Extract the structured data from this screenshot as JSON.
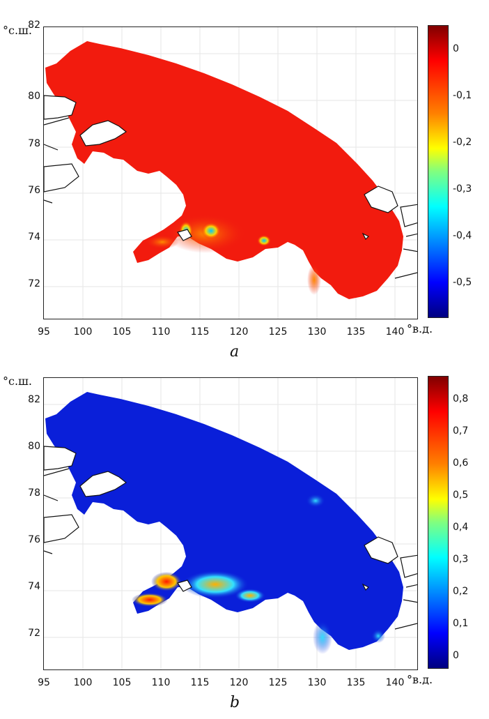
{
  "panels": [
    {
      "id": "a",
      "caption": "a",
      "lat_unit": "°с.ш.",
      "lon_unit": "°в.д.",
      "lat_ticks": [
        "82",
        "80",
        "78",
        "76",
        "74",
        "72"
      ],
      "lon_ticks": [
        "95",
        "100",
        "105",
        "110",
        "115",
        "120",
        "125",
        "130",
        "135",
        "140"
      ],
      "colorbar_ticks": [
        "0",
        "-0,1",
        "-0,2",
        "-0,3",
        "-0,4",
        "-0,5"
      ],
      "colorbar_range": [
        -0.58,
        0.04
      ],
      "base_color": "#f21b0e",
      "coastal_colors": [
        "#ffd400",
        "#ff8c00",
        "#00c8ff",
        "#1e6bff"
      ]
    },
    {
      "id": "b",
      "caption": "b",
      "lat_unit": "°с.ш.",
      "lon_unit": "°в.д.",
      "lat_ticks": [
        "82",
        "80",
        "78",
        "76",
        "74",
        "72"
      ],
      "lon_ticks": [
        "95",
        "100",
        "105",
        "110",
        "115",
        "120",
        "125",
        "130",
        "135",
        "140"
      ],
      "colorbar_ticks": [
        "0,8",
        "0,7",
        "0,6",
        "0,5",
        "0,4",
        "0,3",
        "0,2",
        "0,1",
        "0"
      ],
      "colorbar_range": [
        -0.03,
        0.88
      ],
      "base_color": "#0a1fd9",
      "coastal_colors": [
        "#ff3b00",
        "#ffc800",
        "#33e0ff",
        "#2f6bff"
      ]
    }
  ],
  "colormap": "jet"
}
